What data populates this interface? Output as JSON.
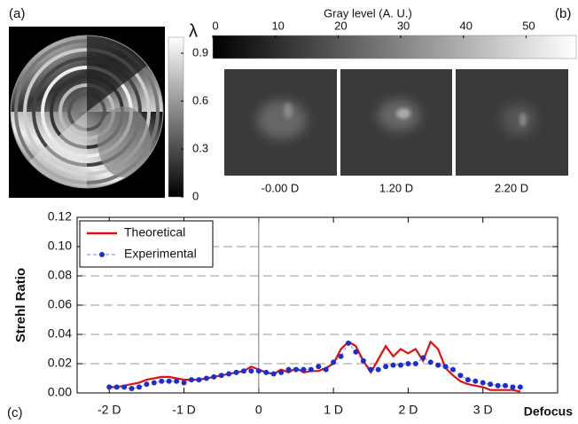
{
  "panel_labels": [
    "(a)",
    "(b)",
    "(c)"
  ],
  "image_captions": [
    "-0.00 D",
    "1.20 D",
    "2.20 D"
  ],
  "chart_data": [
    {
      "type": "colorbar",
      "title": "λ",
      "colors": [
        "#000000",
        "#ffffff"
      ],
      "ylim": [
        0,
        1
      ],
      "yticks": [
        0,
        0.3,
        0.6,
        0.9
      ]
    },
    {
      "type": "colorbar",
      "title": "Gray level (A. U.)",
      "colors": [
        "#000000",
        "#ffffff"
      ],
      "xlim": [
        0,
        58
      ],
      "xticks": [
        0,
        10,
        20,
        30,
        40,
        50
      ]
    },
    {
      "type": "line",
      "y_label": "Strehl Ratio",
      "x_label": "Defocus",
      "grid": true,
      "legend": "upper-left",
      "xlim": [
        -2.43,
        4.0
      ],
      "xticks": [
        {
          "value": -2,
          "label": "-2 D"
        },
        {
          "value": -1,
          "label": "-1 D"
        },
        0,
        {
          "value": 1,
          "label": "1 D"
        },
        {
          "value": 2,
          "label": "2 D"
        },
        {
          "value": 3,
          "label": "3 D"
        }
      ],
      "ylim": [
        0,
        0.12
      ],
      "yticks": [
        {
          "value": 0,
          "label": "0.00"
        },
        {
          "value": 0.02,
          "label": "0.02"
        },
        {
          "value": 0.04,
          "label": "0.04"
        },
        {
          "value": 0.06,
          "label": "0.06"
        },
        {
          "value": 0.08,
          "label": "0.08"
        },
        {
          "value": 0.1,
          "label": "0.10"
        },
        {
          "value": 0.12,
          "label": "0.12"
        }
      ],
      "x": [
        -2,
        -1.9,
        -1.8,
        -1.7,
        -1.6,
        -1.5,
        -1.4,
        -1.3,
        -1.2,
        -1.1,
        -1,
        -0.9,
        -0.8,
        -0.7,
        -0.6,
        -0.5,
        -0.4,
        -0.3,
        -0.2,
        -0.1,
        0,
        0.1,
        0.2,
        0.3,
        0.4,
        0.5,
        0.6,
        0.7,
        0.8,
        0.9,
        1,
        1.1,
        1.2,
        1.3,
        1.4,
        1.5,
        1.6,
        1.7,
        1.8,
        1.9,
        2,
        2.1,
        2.2,
        2.3,
        2.4,
        2.5,
        2.6,
        2.7,
        2.8,
        2.9,
        3,
        3.1,
        3.2,
        3.3,
        3.4,
        3.5
      ],
      "series": [
        {
          "name": "Theoretical",
          "color": "#e01010",
          "style": "line",
          "values": [
            0.004,
            0.004,
            0.005,
            0.006,
            0.007,
            0.009,
            0.01,
            0.011,
            0.011,
            0.01,
            0.009,
            0.009,
            0.009,
            0.01,
            0.011,
            0.012,
            0.013,
            0.014,
            0.015,
            0.018,
            0.016,
            0.014,
            0.013,
            0.016,
            0.014,
            0.017,
            0.014,
            0.015,
            0.015,
            0.017,
            0.02,
            0.03,
            0.035,
            0.032,
            0.022,
            0.014,
            0.023,
            0.032,
            0.025,
            0.03,
            0.027,
            0.03,
            0.022,
            0.035,
            0.03,
            0.017,
            0.012,
            0.008,
            0.006,
            0.005,
            0.004,
            0.002,
            0.002,
            0.002,
            0.002,
            0.001
          ]
        },
        {
          "name": "Experimental",
          "color": "#1a2fd0",
          "style": "markers",
          "values": [
            0.004,
            0.004,
            0.004,
            0.003,
            0.004,
            0.006,
            0.007,
            0.008,
            0.008,
            0.008,
            0.007,
            0.009,
            0.009,
            0.01,
            0.011,
            0.012,
            0.013,
            0.014,
            0.015,
            0.015,
            0.015,
            0.014,
            0.013,
            0.014,
            0.016,
            0.016,
            0.016,
            0.016,
            0.018,
            0.016,
            0.021,
            0.025,
            0.034,
            0.028,
            0.022,
            0.016,
            0.016,
            0.018,
            0.019,
            0.019,
            0.02,
            0.02,
            0.024,
            0.021,
            0.019,
            0.018,
            0.016,
            0.012,
            0.009,
            0.008,
            0.007,
            0.006,
            0.005,
            0.005,
            0.004,
            0.004
          ]
        }
      ]
    }
  ]
}
